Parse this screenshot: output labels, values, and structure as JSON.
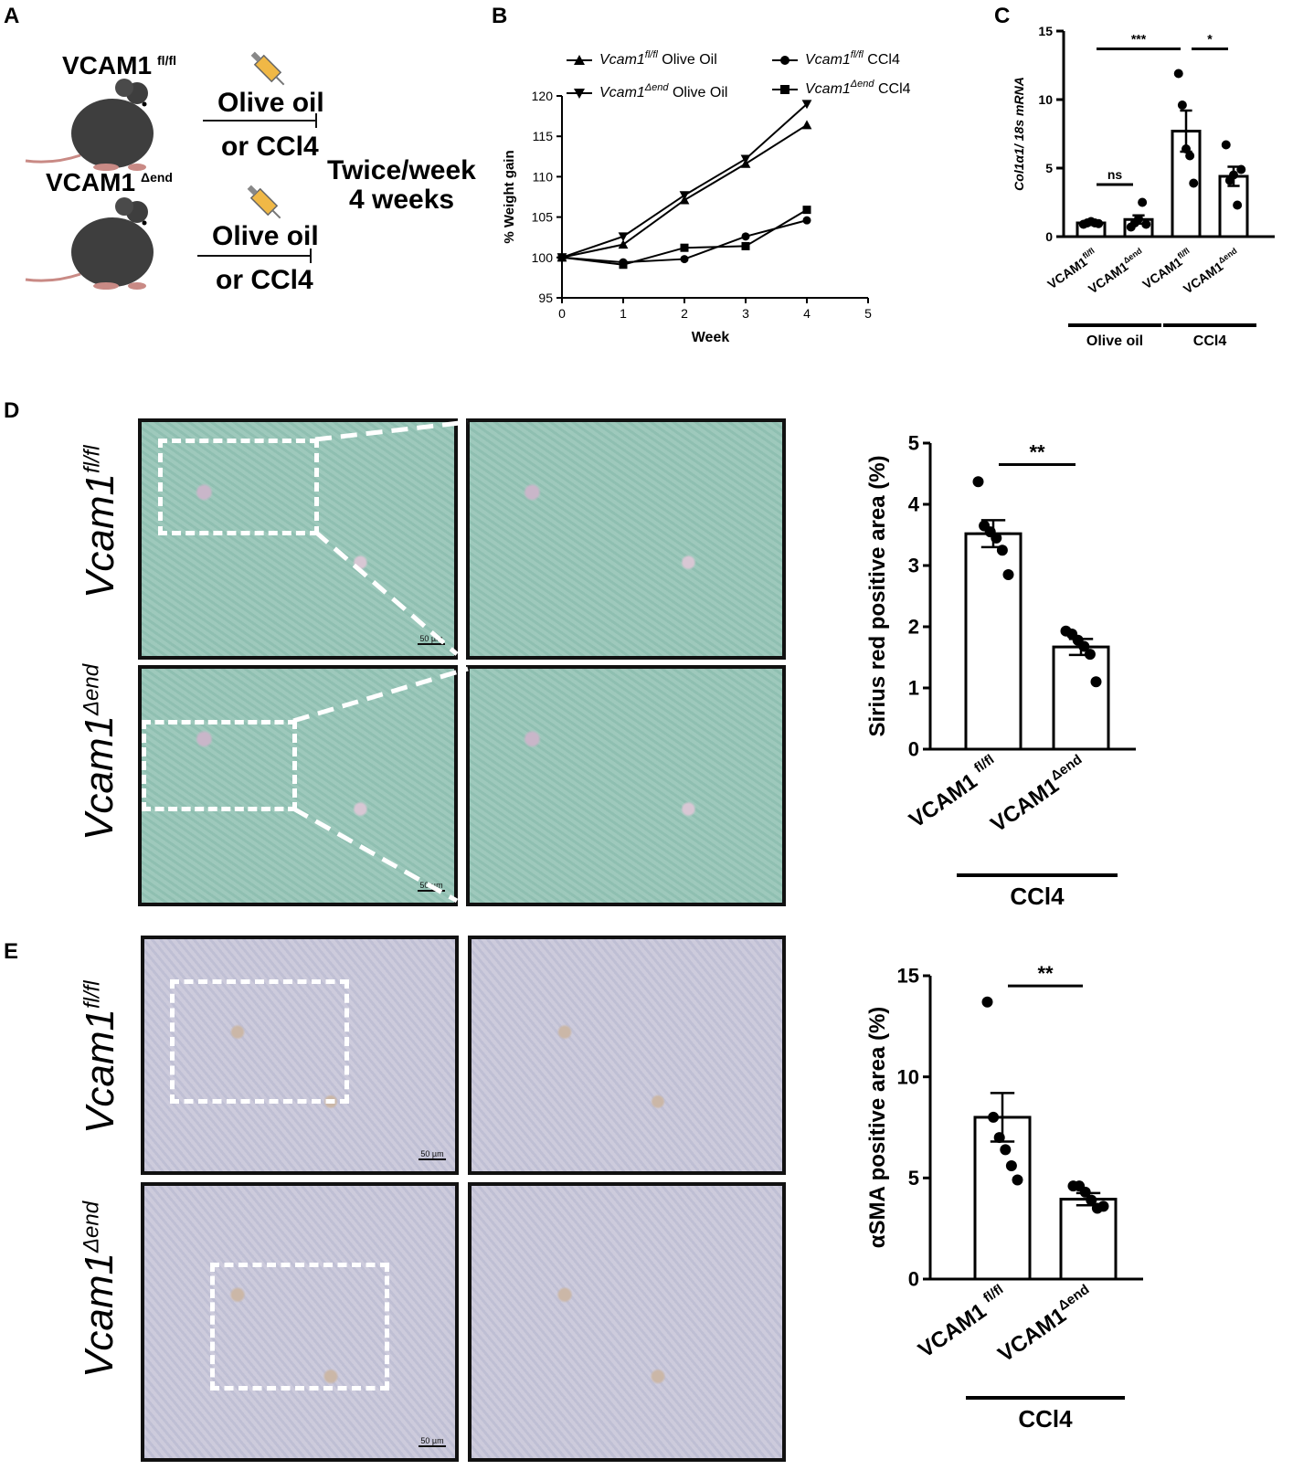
{
  "panels": {
    "a": "A",
    "b": "B",
    "c": "C",
    "d": "D",
    "e": "E"
  },
  "schematic": {
    "mouse1_label": "VCAM1",
    "mouse1_sup": "fl/fl",
    "mouse2_label": "VCAM1",
    "mouse2_sup": "Δend",
    "treat1_line1": "Olive oil",
    "treat1_line2": "or CCl4",
    "treat2_line1": "Olive oil",
    "treat2_line2": "or CCl4",
    "schedule_line1": "Twice/week",
    "schedule_line2": "4 weeks"
  },
  "micrographs": {
    "row1_label": "Vcam1",
    "row1_sup": "fl/fl",
    "row2_label": "Vcam1",
    "row2_sup": "Δend",
    "scale": "50 µm"
  },
  "colors": {
    "sirius_stain": "#96c4b6",
    "asma_stain": "#c6c4d8",
    "ink": "#000000"
  },
  "chart_data": [
    {
      "id": "B",
      "type": "line",
      "title": "",
      "xlabel": "Week",
      "ylabel": "% Weight gain",
      "xlim": [
        0,
        5
      ],
      "ylim": [
        95,
        120
      ],
      "xticks": [
        0,
        1,
        2,
        3,
        4,
        5
      ],
      "yticks": [
        95,
        100,
        105,
        110,
        115,
        120
      ],
      "legend_position": "top",
      "x": [
        0,
        1,
        2,
        3,
        4
      ],
      "series": [
        {
          "name_main": "Vcam1",
          "name_sup": "fl/fl",
          "name_tail": " Olive Oil",
          "marker": "triangle-up",
          "values": [
            100,
            101.6,
            107.1,
            111.6,
            116.4
          ]
        },
        {
          "name_main": "Vcam1",
          "name_sup": "Δend",
          "name_tail": " Olive Oil",
          "marker": "triangle-down",
          "values": [
            100,
            102.6,
            107.7,
            112.2,
            119.0
          ]
        },
        {
          "name_main": "Vcam1",
          "name_sup": "fl/fl",
          "name_tail": " CCl4",
          "marker": "circle",
          "values": [
            100,
            99.4,
            99.8,
            102.6,
            104.6
          ]
        },
        {
          "name_main": "Vcam1",
          "name_sup": "Δend",
          "name_tail": " CCl4",
          "marker": "square",
          "values": [
            100,
            99.1,
            101.2,
            101.4,
            105.9
          ]
        }
      ]
    },
    {
      "id": "C",
      "type": "bar",
      "title": "",
      "ylabel": "Col1α1/ 18s mRNA",
      "ylim": [
        0,
        15
      ],
      "yticks": [
        0,
        5,
        10,
        15
      ],
      "categories": [
        {
          "main": "VCAM1",
          "sup": "fl/fl"
        },
        {
          "main": "VCAM1",
          "sup": "Δend"
        },
        {
          "main": "VCAM1",
          "sup": "fl/fl"
        },
        {
          "main": "VCAM1",
          "sup": "Δend"
        }
      ],
      "values": [
        1.0,
        1.25,
        7.7,
        4.4
      ],
      "errors": [
        0.15,
        0.3,
        1.5,
        0.7
      ],
      "points": [
        [
          0.9,
          1.0,
          1.1,
          1.0,
          0.95
        ],
        [
          0.7,
          1.0,
          1.3,
          2.5,
          0.9
        ],
        [
          11.9,
          9.6,
          6.4,
          5.9,
          3.9
        ],
        [
          6.7,
          4.1,
          4.5,
          2.3,
          4.9
        ]
      ],
      "groups": [
        {
          "label": "Olive oil",
          "from": 0,
          "to": 1
        },
        {
          "label": "CCl4",
          "from": 2,
          "to": 3
        }
      ],
      "significance": [
        {
          "from": 0,
          "to": 2,
          "label": "***",
          "y": 13.7
        },
        {
          "from": 2,
          "to": 3,
          "label": "*",
          "y": 13.7
        },
        {
          "from": 0,
          "to": 1,
          "label": "ns",
          "y": 3.8
        }
      ]
    },
    {
      "id": "D",
      "type": "bar",
      "title": "",
      "ylabel": "Sirius red positive area (%)",
      "ylim": [
        0,
        5
      ],
      "yticks": [
        0,
        1,
        2,
        3,
        4,
        5
      ],
      "categories": [
        {
          "main": "VCAM1 ",
          "sup": "fl/fl"
        },
        {
          "main": "VCAM1",
          "sup": "Δend"
        }
      ],
      "values": [
        3.52,
        1.67
      ],
      "errors": [
        0.22,
        0.13
      ],
      "points": [
        [
          4.37,
          3.65,
          3.55,
          3.45,
          3.25,
          2.85
        ],
        [
          1.93,
          1.88,
          1.78,
          1.68,
          1.55,
          1.1
        ]
      ],
      "groups": [
        {
          "label": "CCl4",
          "from": 0,
          "to": 1
        }
      ],
      "significance": [
        {
          "from": 0,
          "to": 1,
          "label": "**",
          "y": 4.65
        }
      ]
    },
    {
      "id": "E",
      "type": "bar",
      "title": "",
      "ylabel": "αSMA positive area (%)",
      "ylim": [
        0,
        15
      ],
      "yticks": [
        0,
        5,
        10,
        15
      ],
      "categories": [
        {
          "main": "VCAM1 ",
          "sup": "fl/fl"
        },
        {
          "main": "VCAM1",
          "sup": "Δend"
        }
      ],
      "values": [
        8.0,
        3.95
      ],
      "errors": [
        1.2,
        0.3
      ],
      "points": [
        [
          13.7,
          8.0,
          7.0,
          6.4,
          5.6,
          4.9
        ],
        [
          4.6,
          4.6,
          4.3,
          3.9,
          3.5,
          3.6
        ]
      ],
      "groups": [
        {
          "label": "CCl4",
          "from": 0,
          "to": 1
        }
      ],
      "significance": [
        {
          "from": 0,
          "to": 1,
          "label": "**",
          "y": 14.5
        }
      ]
    }
  ]
}
